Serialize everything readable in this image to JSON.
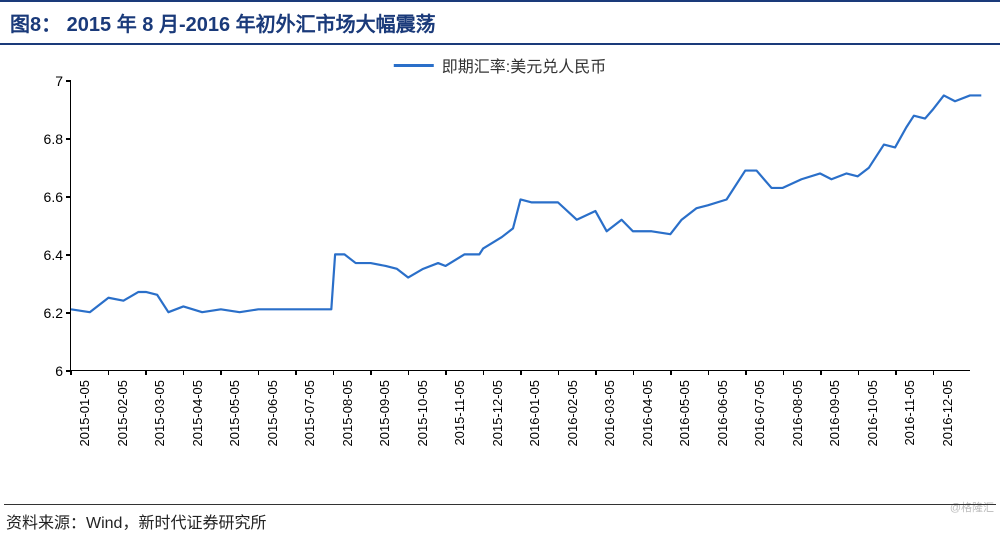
{
  "title": "图8：  2015 年 8 月-2016 年初外汇市场大幅震荡",
  "legend_label": "即期汇率:美元兑人民币",
  "source": "资料来源：Wind，新时代证券研究所",
  "watermark": "@格隆汇",
  "chart": {
    "type": "line",
    "line_color": "#2a6fc9",
    "line_width": 2.2,
    "background_color": "#ffffff",
    "axis_color": "#000000",
    "ylim": [
      6,
      7
    ],
    "ytick_step": 0.2,
    "yticks": [
      6,
      6.2,
      6.4,
      6.6,
      6.8,
      7
    ],
    "xticks": [
      "2015-01-05",
      "2015-02-05",
      "2015-03-05",
      "2015-04-05",
      "2015-05-05",
      "2015-06-05",
      "2015-07-05",
      "2015-08-05",
      "2015-09-05",
      "2015-10-05",
      "2015-11-05",
      "2015-12-05",
      "2016-01-05",
      "2016-02-05",
      "2016-03-05",
      "2016-04-05",
      "2016-05-05",
      "2016-06-05",
      "2016-07-05",
      "2016-08-05",
      "2016-09-05",
      "2016-10-05",
      "2016-11-05",
      "2016-12-05"
    ],
    "series": [
      {
        "x": 0.0,
        "y": 6.21
      },
      {
        "x": 0.5,
        "y": 6.2
      },
      {
        "x": 1.0,
        "y": 6.25
      },
      {
        "x": 1.4,
        "y": 6.24
      },
      {
        "x": 1.8,
        "y": 6.27
      },
      {
        "x": 2.0,
        "y": 6.27
      },
      {
        "x": 2.3,
        "y": 6.26
      },
      {
        "x": 2.6,
        "y": 6.2
      },
      {
        "x": 3.0,
        "y": 6.22
      },
      {
        "x": 3.5,
        "y": 6.2
      },
      {
        "x": 4.0,
        "y": 6.21
      },
      {
        "x": 4.5,
        "y": 6.2
      },
      {
        "x": 5.0,
        "y": 6.21
      },
      {
        "x": 5.5,
        "y": 6.21
      },
      {
        "x": 6.0,
        "y": 6.21
      },
      {
        "x": 6.5,
        "y": 6.21
      },
      {
        "x": 6.95,
        "y": 6.21
      },
      {
        "x": 7.05,
        "y": 6.4
      },
      {
        "x": 7.3,
        "y": 6.4
      },
      {
        "x": 7.6,
        "y": 6.37
      },
      {
        "x": 8.0,
        "y": 6.37
      },
      {
        "x": 8.4,
        "y": 6.36
      },
      {
        "x": 8.7,
        "y": 6.35
      },
      {
        "x": 9.0,
        "y": 6.32
      },
      {
        "x": 9.4,
        "y": 6.35
      },
      {
        "x": 9.8,
        "y": 6.37
      },
      {
        "x": 10.0,
        "y": 6.36
      },
      {
        "x": 10.5,
        "y": 6.4
      },
      {
        "x": 10.9,
        "y": 6.4
      },
      {
        "x": 11.0,
        "y": 6.42
      },
      {
        "x": 11.5,
        "y": 6.46
      },
      {
        "x": 11.8,
        "y": 6.49
      },
      {
        "x": 12.0,
        "y": 6.59
      },
      {
        "x": 12.3,
        "y": 6.58
      },
      {
        "x": 12.6,
        "y": 6.58
      },
      {
        "x": 13.0,
        "y": 6.58
      },
      {
        "x": 13.5,
        "y": 6.52
      },
      {
        "x": 14.0,
        "y": 6.55
      },
      {
        "x": 14.3,
        "y": 6.48
      },
      {
        "x": 14.7,
        "y": 6.52
      },
      {
        "x": 15.0,
        "y": 6.48
      },
      {
        "x": 15.5,
        "y": 6.48
      },
      {
        "x": 16.0,
        "y": 6.47
      },
      {
        "x": 16.3,
        "y": 6.52
      },
      {
        "x": 16.7,
        "y": 6.56
      },
      {
        "x": 17.0,
        "y": 6.57
      },
      {
        "x": 17.5,
        "y": 6.59
      },
      {
        "x": 18.0,
        "y": 6.69
      },
      {
        "x": 18.3,
        "y": 6.69
      },
      {
        "x": 18.7,
        "y": 6.63
      },
      {
        "x": 19.0,
        "y": 6.63
      },
      {
        "x": 19.5,
        "y": 6.66
      },
      {
        "x": 20.0,
        "y": 6.68
      },
      {
        "x": 20.3,
        "y": 6.66
      },
      {
        "x": 20.7,
        "y": 6.68
      },
      {
        "x": 21.0,
        "y": 6.67
      },
      {
        "x": 21.3,
        "y": 6.7
      },
      {
        "x": 21.7,
        "y": 6.78
      },
      {
        "x": 22.0,
        "y": 6.77
      },
      {
        "x": 22.3,
        "y": 6.84
      },
      {
        "x": 22.5,
        "y": 6.88
      },
      {
        "x": 22.8,
        "y": 6.87
      },
      {
        "x": 23.0,
        "y": 6.9
      },
      {
        "x": 23.3,
        "y": 6.95
      },
      {
        "x": 23.6,
        "y": 6.93
      },
      {
        "x": 24.0,
        "y": 6.95
      },
      {
        "x": 24.3,
        "y": 6.95
      }
    ],
    "x_count": 24
  }
}
